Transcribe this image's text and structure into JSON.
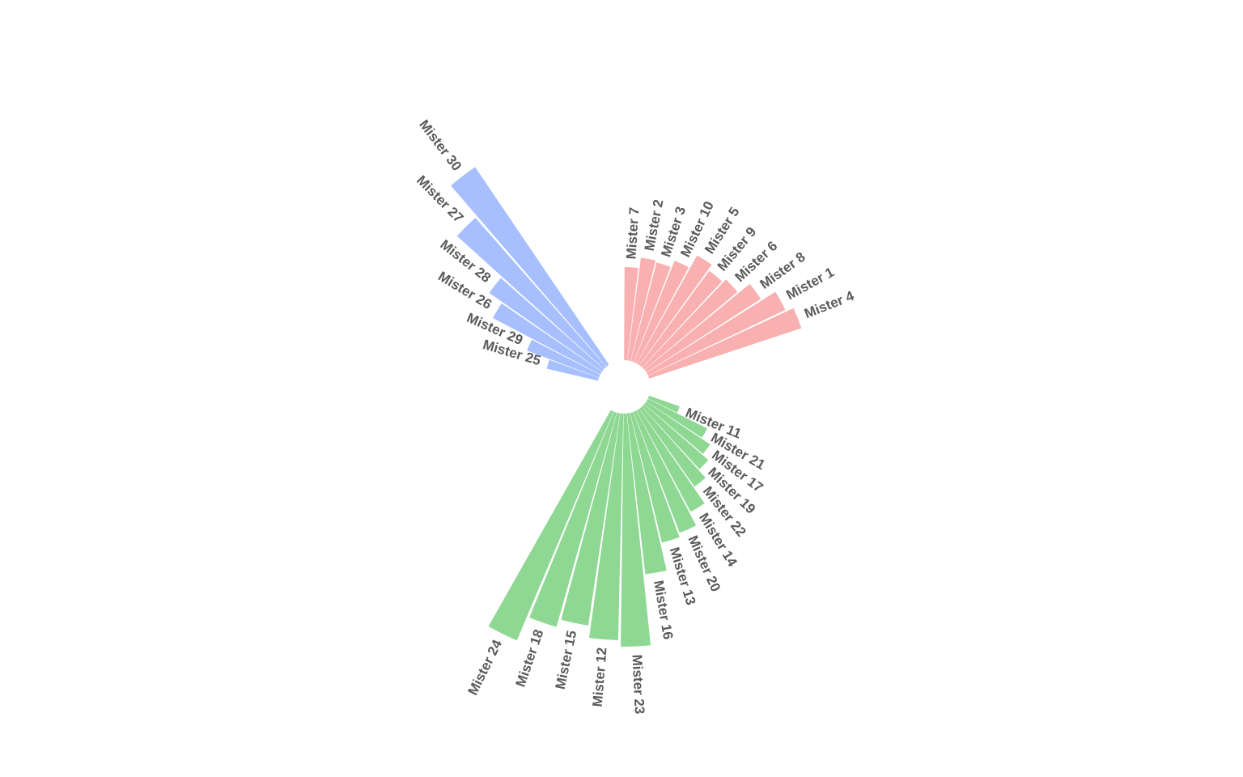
{
  "chart_data": {
    "type": "bar",
    "layout": "circular",
    "title": "",
    "colors": {
      "group_a": "#f8b0b0",
      "group_b": "#8ed893",
      "group_c": "#a8bffd"
    },
    "groups": [
      {
        "key": "group_a",
        "color": "#f8b0b0",
        "categories": [
          "Mister 7",
          "Mister 2",
          "Mister 3",
          "Mister 10",
          "Mister 5",
          "Mister 9",
          "Mister 6",
          "Mister 8",
          "Mister 1",
          "Mister 4"
        ],
        "values": [
          115,
          128,
          126,
          135,
          153,
          145,
          150,
          168,
          188,
          198
        ]
      },
      {
        "key": "group_b",
        "color": "#8ed893",
        "categories": [
          "Mister 11",
          "Mister 21",
          "Mister 17",
          "Mister 19",
          "Mister 22",
          "Mister 14",
          "Mister 20",
          "Mister 13",
          "Mister 16",
          "Mister 23",
          "Mister 12",
          "Mister 15",
          "Mister 18",
          "Mister 24"
        ],
        "values": [
          40,
          82,
          95,
          105,
          118,
          142,
          160,
          165,
          200,
          288,
          280,
          265,
          275,
          307
        ]
      },
      {
        "key": "group_c",
        "color": "#a8bffd",
        "categories": [
          "Mister 25",
          "Mister 29",
          "Mister 26",
          "Mister 28",
          "Mister 27",
          "Mister 30"
        ],
        "values": [
          65,
          95,
          150,
          170,
          245,
          295
        ]
      }
    ]
  }
}
